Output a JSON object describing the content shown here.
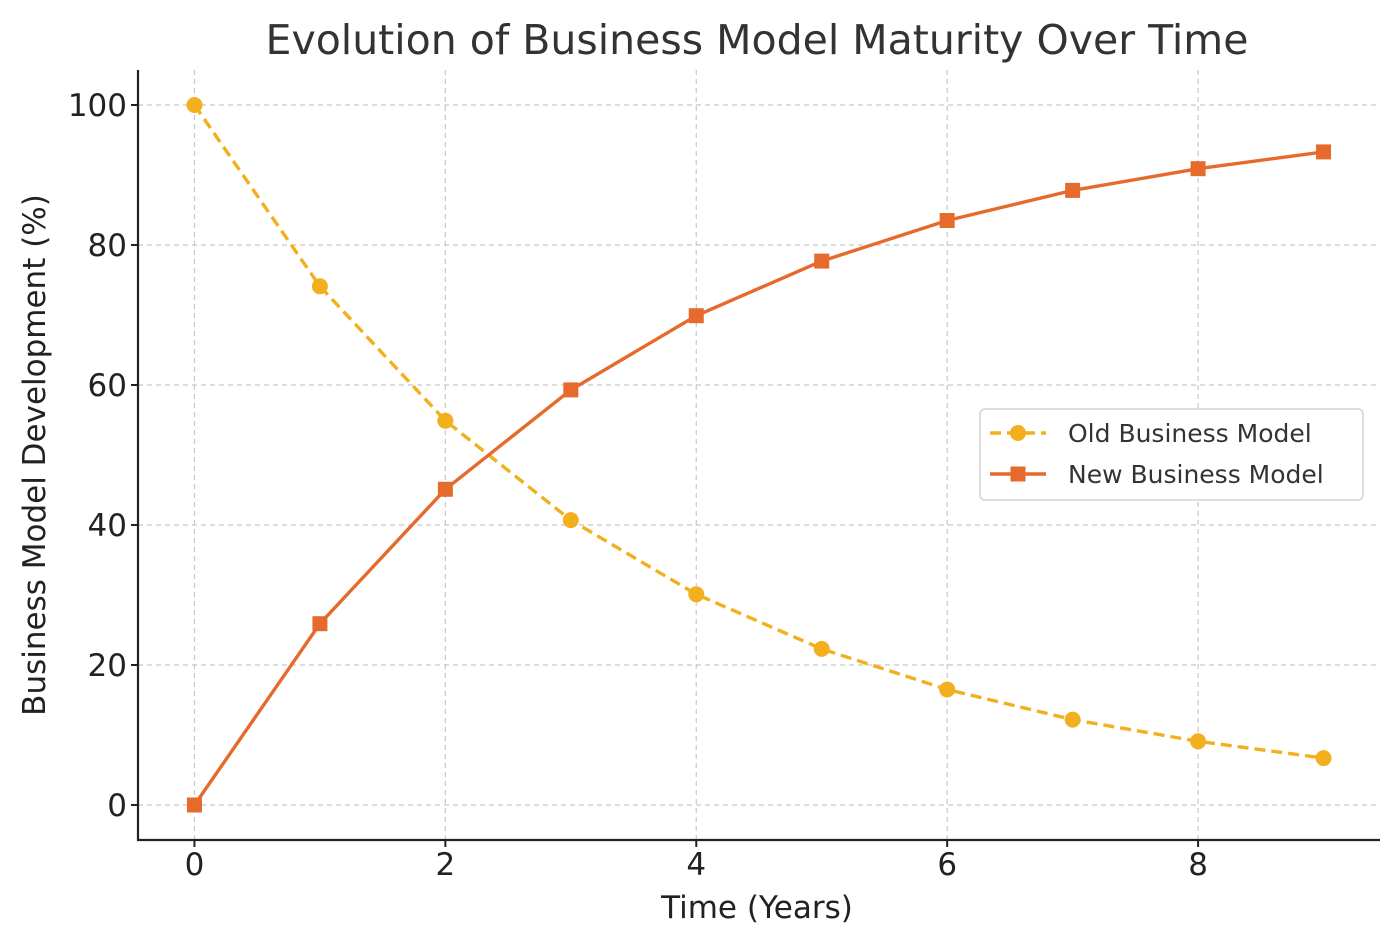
{
  "chart_data": {
    "type": "line",
    "title": "Evolution of Business Model Maturity Over Time",
    "xlabel": "Time (Years)",
    "ylabel": "Business Model Development (%)",
    "xlim": [
      -0.45,
      9.45
    ],
    "ylim": [
      -5,
      105
    ],
    "xticks": [
      0,
      2,
      4,
      6,
      8
    ],
    "yticks": [
      0,
      20,
      40,
      60,
      80,
      100
    ],
    "x": [
      0,
      1,
      2,
      3,
      4,
      5,
      6,
      7,
      8,
      9
    ],
    "grid": true,
    "legend_position": "center-right",
    "series": [
      {
        "name": "Old Business Model",
        "values": [
          100,
          74.1,
          54.9,
          40.7,
          30.1,
          22.3,
          16.5,
          12.2,
          9.1,
          6.7
        ],
        "color": "#F2B01E",
        "line_style": "dashed",
        "marker": "circle"
      },
      {
        "name": "New Business Model",
        "values": [
          0,
          25.9,
          45.1,
          59.3,
          69.9,
          77.7,
          83.5,
          87.8,
          90.9,
          93.3
        ],
        "color": "#E66A2C",
        "line_style": "solid",
        "marker": "square"
      }
    ]
  }
}
